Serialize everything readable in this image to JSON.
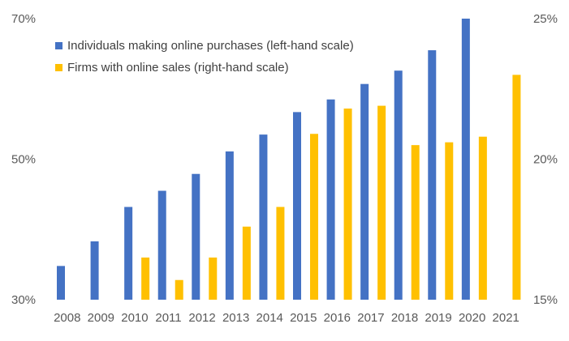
{
  "chart_data": {
    "type": "bar",
    "categories": [
      "2008",
      "2009",
      "2010",
      "2011",
      "2012",
      "2013",
      "2014",
      "2015",
      "2016",
      "2017",
      "2018",
      "2019",
      "2020",
      "2021"
    ],
    "series": [
      {
        "name": "Individuals making online purchases (left-hand scale)",
        "axis": "left",
        "color": "#4472C4",
        "values": [
          34.8,
          38.3,
          43.2,
          45.5,
          47.9,
          51.1,
          53.5,
          56.7,
          58.5,
          60.7,
          62.6,
          65.5,
          70.0,
          null
        ]
      },
      {
        "name": "Firms with online sales (right-hand scale)",
        "axis": "right",
        "color": "#FFC000",
        "values": [
          null,
          null,
          16.5,
          15.7,
          16.5,
          17.6,
          18.3,
          20.9,
          21.8,
          21.9,
          20.5,
          20.6,
          20.8,
          23.0
        ]
      }
    ],
    "y_left": {
      "min": 30,
      "max": 70,
      "ticks": [
        30,
        50,
        70
      ],
      "tick_labels": [
        "30%",
        "50%",
        "70%"
      ]
    },
    "y_right": {
      "min": 15,
      "max": 25,
      "ticks": [
        15,
        20,
        25
      ],
      "tick_labels": [
        "15%",
        "20%",
        "25%"
      ]
    },
    "legend_position": "top-left",
    "grid": false
  }
}
